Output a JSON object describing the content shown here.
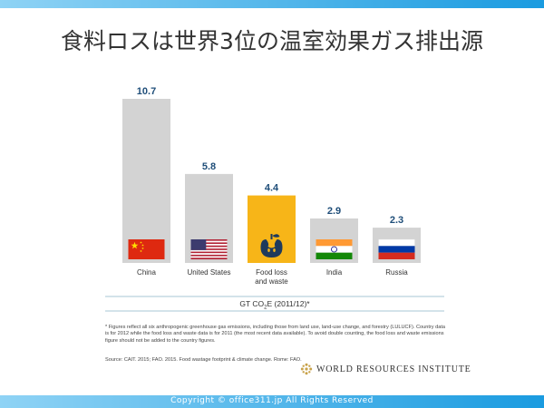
{
  "page": {
    "title": "食料ロスは世界3位の温室効果ガス排出源",
    "footnote": "* Figures reflect all six anthropogenic greenhouse gas emissions, including those from land use, land-use change, and forestry (LULUCF).  Country data is for 2012 while the food loss and waste data is for 2011 (the most recent data available). To avoid double counting, the food loss and waste emissions figure should not be added to the country figures.",
    "source": "Source: CAIT. 2015; FAO. 2015. Food wastage footprint & climate change. Rome: FAO.",
    "copyright": "Copyright © office311.jp All Rights Reserved",
    "logo_text": "WORLD RESOURCES INSTITUTE"
  },
  "chart_data": {
    "type": "bar",
    "title": "",
    "xlabel": "GT CO2E (2011/12)*",
    "xlabel_parts": {
      "main": "GT CO",
      "sub": "2",
      "rest": "E (2011/12)*"
    },
    "ylabel": "",
    "ylim": [
      0,
      10.7
    ],
    "grid": false,
    "categories": [
      {
        "label_lines": [
          "China"
        ],
        "icon": "china-flag"
      },
      {
        "label_lines": [
          "United States"
        ],
        "icon": "us-flag"
      },
      {
        "label_lines": [
          "Food loss",
          "and waste"
        ],
        "icon": "eaten-apple-icon"
      },
      {
        "label_lines": [
          "India"
        ],
        "icon": "india-flag"
      },
      {
        "label_lines": [
          "Russia"
        ],
        "icon": "russia-flag"
      }
    ],
    "values": [
      10.7,
      5.8,
      4.4,
      2.9,
      2.3
    ],
    "value_labels": [
      "10.7",
      "5.8",
      "4.4",
      "2.9",
      "2.3"
    ],
    "colors": {
      "bar": "#d3d3d3",
      "highlight": "#f7b518",
      "value_label": "#1f4e79",
      "axis_line": "#8ab4c8",
      "category_label": "#333333"
    },
    "highlight_index": 2
  }
}
